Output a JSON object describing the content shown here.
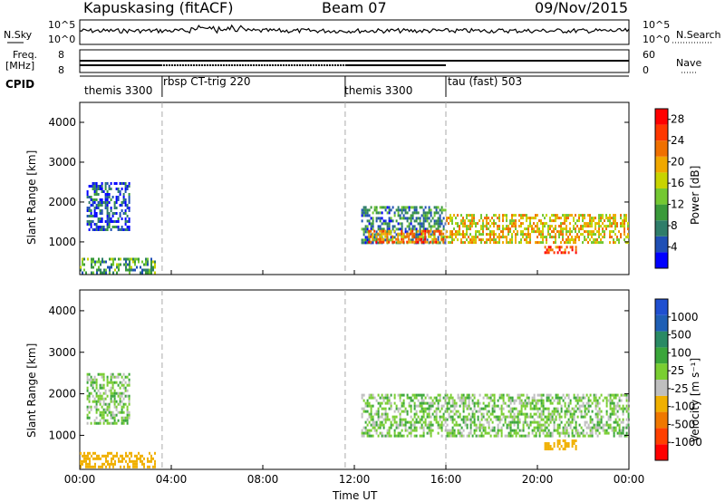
{
  "header": {
    "station": "Kapuskasing (fitACF)",
    "beam": "Beam 07",
    "date": "09/Nov/2015"
  },
  "strip_labels": {
    "nsky": "N.Sky",
    "nsky_top": "10^5",
    "nsky_bottom": "10^0",
    "nsearch": "N.Search",
    "nsearch_top": "10^5",
    "nsearch_bottom": "10^0",
    "freq_line1": "Freq.",
    "freq_line2": "[MHz]",
    "freq_value": "8",
    "nave": "Nave",
    "nave_top": "60",
    "nave_bottom": "0",
    "cpid": "CPID"
  },
  "cpid_segments": [
    {
      "label": "themis 3300",
      "start_hour": 0.0
    },
    {
      "label": "rbsp CT-trig 220",
      "start_hour": 3.6
    },
    {
      "label": "themis 3300",
      "start_hour": 11.6
    },
    {
      "label": "tau (fast) 503",
      "start_hour": 16.0
    }
  ],
  "colors": {
    "power": [
      "#0000ff",
      "#1f4fb5",
      "#2f7d6a",
      "#3a9a3a",
      "#74c832",
      "#c8d400",
      "#f0a800",
      "#f07000",
      "#ff3800",
      "#ff0000"
    ],
    "velocity": [
      "#1f4fd0",
      "#1f5fb5",
      "#2a8a64",
      "#3aa63a",
      "#7ace32",
      "#bfbfbf",
      "#f0b000",
      "#f07800",
      "#ff4000",
      "#ff0000"
    ],
    "ground_scatter": "#bfbfbf"
  },
  "chart_data": [
    {
      "type": "heatmap",
      "title": "",
      "xlabel": "Time UT",
      "ylabel": "Slant Range [km]",
      "xlim": [
        0,
        24
      ],
      "ylim": [
        180,
        4500
      ],
      "x_ticks": [
        "00:00",
        "04:00",
        "08:00",
        "12:00",
        "16:00",
        "20:00",
        "00:00"
      ],
      "y_ticks": [
        1000,
        2000,
        3000,
        4000
      ],
      "colorbar": {
        "label": "Power [dB]",
        "range": [
          0,
          30
        ],
        "ticks": [
          4,
          8,
          12,
          16,
          20,
          24,
          28
        ]
      },
      "echo_regions": [
        {
          "start_hour": 0.0,
          "end_hour": 3.3,
          "range_km": [
            250,
            600
          ],
          "level_db": 10
        },
        {
          "start_hour": 0.3,
          "end_hour": 2.2,
          "range_km": [
            1300,
            2500
          ],
          "level_db": 5
        },
        {
          "start_hour": 12.3,
          "end_hour": 16.0,
          "range_km": [
            950,
            1900
          ],
          "level_db": 8
        },
        {
          "start_hour": 12.6,
          "end_hour": 16.0,
          "range_km": [
            1000,
            1300
          ],
          "level_db": 22
        },
        {
          "start_hour": 16.0,
          "end_hour": 24.0,
          "range_km": [
            1000,
            1700
          ],
          "level_db": 18
        },
        {
          "start_hour": 20.3,
          "end_hour": 21.7,
          "range_km": [
            700,
            900
          ],
          "level_db": 26
        }
      ]
    },
    {
      "type": "heatmap",
      "title": "",
      "xlabel": "Time UT",
      "ylabel": "Slant Range [km]",
      "xlim": [
        0,
        24
      ],
      "ylim": [
        180,
        4500
      ],
      "x_ticks": [
        "00:00",
        "04:00",
        "08:00",
        "12:00",
        "16:00",
        "20:00",
        "00:00"
      ],
      "y_ticks": [
        1000,
        2000,
        3000,
        4000
      ],
      "colorbar": {
        "label": "Velocity [m s⁻¹]",
        "ticks": [
          "1000",
          "500",
          "100",
          "25",
          "-25",
          "-100",
          "-500",
          "-1000"
        ]
      },
      "echo_regions": [
        {
          "start_hour": 0.0,
          "end_hour": 3.3,
          "range_km": [
            250,
            600
          ],
          "velocity_ms": -300
        },
        {
          "start_hour": 0.3,
          "end_hour": 2.2,
          "range_km": [
            1300,
            2500
          ],
          "velocity_ms": 0
        },
        {
          "start_hour": 12.3,
          "end_hour": 24.0,
          "range_km": [
            1000,
            2000
          ],
          "velocity_ms": 0
        },
        {
          "start_hour": 20.3,
          "end_hour": 21.7,
          "range_km": [
            700,
            900
          ],
          "velocity_ms": -400
        }
      ]
    }
  ]
}
